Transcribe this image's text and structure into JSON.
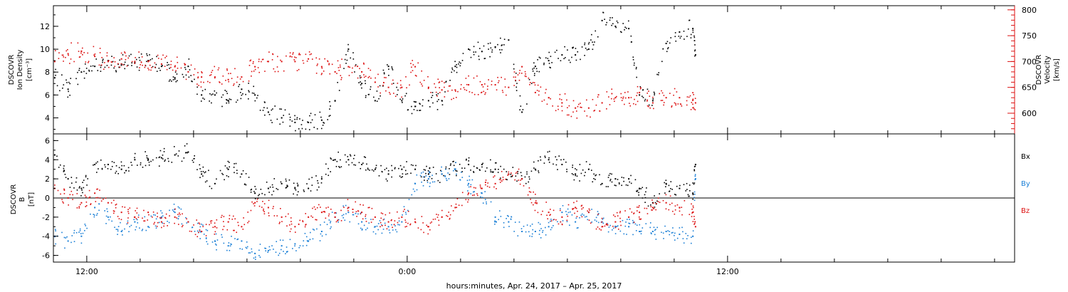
{
  "chart_data": [
    {
      "type": "scatter",
      "panel": "top",
      "ylabel_left": [
        "DSCOVR",
        "Ion Density",
        "[cm⁻³]"
      ],
      "ylabel_right": [
        "DSCOVR",
        "Velocity",
        "[km/s]"
      ],
      "ylim_left": [
        2.6,
        13.8
      ],
      "ylim_right": [
        560,
        808
      ],
      "yticks_left": [
        "4",
        "6",
        "8",
        "10",
        "12"
      ],
      "yticks_right": [
        "600",
        "650",
        "700",
        "750",
        "800"
      ],
      "x_range_hours": [
        -13.25,
        22.75
      ],
      "x_units": "hours from 00:00 Apr. 25, 2017",
      "colors": {
        "density": "#000000",
        "velocity": "#dd1111"
      },
      "series": [
        {
          "axis": "left",
          "color": "density",
          "points": [
            [
              -13.2,
              7.5
            ],
            [
              -12.7,
              6.5
            ],
            [
              -12.2,
              8.0
            ],
            [
              -11.7,
              8.5
            ],
            [
              -11.2,
              9.0
            ],
            [
              -10.7,
              8.7
            ],
            [
              -10.2,
              8.8
            ],
            [
              -9.7,
              9.0
            ],
            [
              -9.2,
              8.5
            ],
            [
              -8.7,
              7.5
            ],
            [
              -8.2,
              8.5
            ],
            [
              -7.7,
              6.0
            ],
            [
              -7.2,
              6.0
            ],
            [
              -6.7,
              5.5
            ],
            [
              -6.2,
              6.5
            ],
            [
              -5.7,
              6.0
            ],
            [
              -5.2,
              4.5
            ],
            [
              -4.7,
              4.0
            ],
            [
              -4.2,
              3.6
            ],
            [
              -3.7,
              3.6
            ],
            [
              -3.2,
              3.8
            ],
            [
              -2.7,
              5.5
            ],
            [
              -2.2,
              10.0
            ],
            [
              -1.7,
              7.0
            ],
            [
              -1.2,
              5.5
            ],
            [
              -0.7,
              8.5
            ],
            [
              -0.2,
              5.5
            ],
            [
              0.3,
              5.0
            ],
            [
              0.8,
              5.5
            ],
            [
              1.3,
              5.5
            ],
            [
              1.8,
              8.5
            ],
            [
              2.3,
              10.0
            ],
            [
              2.8,
              9.8
            ],
            [
              3.3,
              10.2
            ],
            [
              3.8,
              10.8
            ],
            [
              4.3,
              4.5
            ],
            [
              4.8,
              8.5
            ],
            [
              5.3,
              9.0
            ],
            [
              5.8,
              9.5
            ],
            [
              6.3,
              9.5
            ],
            [
              6.8,
              10.0
            ],
            [
              7.3,
              12.5
            ],
            [
              7.8,
              12.0
            ],
            [
              8.3,
              11.8
            ],
            [
              8.7,
              6.0
            ],
            [
              9.2,
              5.5
            ],
            [
              9.7,
              10.5
            ],
            [
              10.2,
              11.5
            ],
            [
              10.7,
              11.8
            ],
            [
              10.8,
              9.5
            ]
          ]
        },
        {
          "axis": "right",
          "color": "velocity",
          "points": [
            [
              -13.2,
              700
            ],
            [
              -12.7,
              715
            ],
            [
              -12.2,
              720
            ],
            [
              -11.7,
              710
            ],
            [
              -11.2,
              700
            ],
            [
              -10.7,
              705
            ],
            [
              -10.2,
              700
            ],
            [
              -9.7,
              700
            ],
            [
              -9.2,
              695
            ],
            [
              -8.7,
              690
            ],
            [
              -8.2,
              680
            ],
            [
              -7.7,
              670
            ],
            [
              -7.2,
              670
            ],
            [
              -6.7,
              665
            ],
            [
              -6.2,
              670
            ],
            [
              -5.7,
              690
            ],
            [
              -5.2,
              700
            ],
            [
              -4.7,
              700
            ],
            [
              -4.2,
              700
            ],
            [
              -3.7,
              705
            ],
            [
              -3.2,
              690
            ],
            [
              -2.7,
              680
            ],
            [
              -2.2,
              690
            ],
            [
              -1.7,
              680
            ],
            [
              -1.2,
              660
            ],
            [
              -0.7,
              650
            ],
            [
              -0.2,
              650
            ],
            [
              0.3,
              690
            ],
            [
              0.8,
              650
            ],
            [
              1.3,
              645
            ],
            [
              1.8,
              645
            ],
            [
              2.3,
              655
            ],
            [
              2.8,
              655
            ],
            [
              3.3,
              655
            ],
            [
              3.8,
              650
            ],
            [
              4.3,
              690
            ],
            [
              4.8,
              640
            ],
            [
              5.3,
              630
            ],
            [
              5.8,
              620
            ],
            [
              6.3,
              610
            ],
            [
              6.8,
              610
            ],
            [
              7.3,
              620
            ],
            [
              7.8,
              630
            ],
            [
              8.3,
              630
            ],
            [
              8.7,
              640
            ],
            [
              9.2,
              620
            ],
            [
              9.7,
              630
            ],
            [
              10.2,
              630
            ],
            [
              10.7,
              625
            ],
            [
              10.8,
              620
            ]
          ]
        }
      ]
    },
    {
      "type": "scatter",
      "panel": "bottom",
      "ylabel_left": [
        "DSCOVR",
        "B",
        "[nT]"
      ],
      "ylim_left": [
        -6.7,
        6.7
      ],
      "yticks_left": [
        "-6",
        "-4",
        "-2",
        "0",
        "2",
        "4",
        "6"
      ],
      "zero_line": true,
      "x_range_hours": [
        -13.25,
        22.75
      ],
      "legend": [
        "Bx",
        "By",
        "Bz"
      ],
      "legend_placement": "right",
      "colors": {
        "bx": "#000000",
        "by": "#1a7fd6",
        "bz": "#dd1111"
      },
      "series": [
        {
          "name": "Bx",
          "color": "bx",
          "points": [
            [
              -13.2,
              4.5
            ],
            [
              -12.7,
              2.0
            ],
            [
              -12.2,
              1.0
            ],
            [
              -11.7,
              3.5
            ],
            [
              -11.2,
              3.5
            ],
            [
              -10.7,
              3.0
            ],
            [
              -10.2,
              4.0
            ],
            [
              -9.7,
              4.0
            ],
            [
              -9.2,
              4.2
            ],
            [
              -8.7,
              4.5
            ],
            [
              -8.2,
              4.8
            ],
            [
              -7.7,
              2.5
            ],
            [
              -7.2,
              1.5
            ],
            [
              -6.7,
              3.0
            ],
            [
              -6.2,
              2.5
            ],
            [
              -5.7,
              0.5
            ],
            [
              -5.2,
              1.0
            ],
            [
              -4.7,
              1.5
            ],
            [
              -4.2,
              1.0
            ],
            [
              -3.7,
              1.0
            ],
            [
              -3.2,
              2.0
            ],
            [
              -2.7,
              4.0
            ],
            [
              -2.2,
              4.0
            ],
            [
              -1.7,
              3.5
            ],
            [
              -1.2,
              3.0
            ],
            [
              -0.7,
              2.5
            ],
            [
              -0.2,
              3.0
            ],
            [
              0.3,
              3.0
            ],
            [
              0.8,
              2.5
            ],
            [
              1.3,
              2.5
            ],
            [
              1.8,
              3.0
            ],
            [
              2.3,
              3.5
            ],
            [
              2.8,
              3.5
            ],
            [
              3.3,
              3.0
            ],
            [
              3.8,
              2.5
            ],
            [
              4.3,
              2.0
            ],
            [
              4.8,
              3.0
            ],
            [
              5.3,
              4.0
            ],
            [
              5.8,
              3.5
            ],
            [
              6.3,
              2.5
            ],
            [
              6.8,
              3.0
            ],
            [
              7.3,
              1.5
            ],
            [
              7.8,
              2.0
            ],
            [
              8.3,
              2.0
            ],
            [
              8.7,
              1.0
            ],
            [
              9.2,
              -0.5
            ],
            [
              9.7,
              1.5
            ],
            [
              10.2,
              1.0
            ],
            [
              10.7,
              0.5
            ],
            [
              10.8,
              3.5
            ]
          ]
        },
        {
          "name": "By",
          "color": "by",
          "points": [
            [
              -13.2,
              -4.0
            ],
            [
              -12.7,
              -4.5
            ],
            [
              -12.2,
              -4.0
            ],
            [
              -11.7,
              -1.0
            ],
            [
              -11.2,
              -2.0
            ],
            [
              -10.7,
              -3.5
            ],
            [
              -10.2,
              -2.5
            ],
            [
              -9.7,
              -3.0
            ],
            [
              -9.2,
              -2.0
            ],
            [
              -8.7,
              -1.5
            ],
            [
              -8.2,
              -2.5
            ],
            [
              -7.7,
              -3.5
            ],
            [
              -7.2,
              -4.5
            ],
            [
              -6.7,
              -5.0
            ],
            [
              -6.2,
              -4.5
            ],
            [
              -5.7,
              -5.8
            ],
            [
              -5.2,
              -5.5
            ],
            [
              -4.7,
              -5.0
            ],
            [
              -4.2,
              -4.8
            ],
            [
              -3.7,
              -4.5
            ],
            [
              -3.2,
              -3.5
            ],
            [
              -2.7,
              -2.0
            ],
            [
              -2.2,
              -1.5
            ],
            [
              -1.7,
              -2.5
            ],
            [
              -1.2,
              -3.0
            ],
            [
              -0.7,
              -3.0
            ],
            [
              -0.2,
              -2.5
            ],
            [
              0.3,
              1.5
            ],
            [
              0.8,
              2.0
            ],
            [
              1.3,
              2.5
            ],
            [
              1.8,
              3.0
            ],
            [
              2.3,
              1.5
            ],
            [
              2.8,
              0.5
            ],
            [
              3.3,
              -2.0
            ],
            [
              3.8,
              -2.5
            ],
            [
              4.3,
              -3.5
            ],
            [
              4.8,
              -3.5
            ],
            [
              5.3,
              -3.0
            ],
            [
              5.8,
              -1.5
            ],
            [
              6.3,
              -2.5
            ],
            [
              6.8,
              -1.5
            ],
            [
              7.3,
              -2.5
            ],
            [
              7.8,
              -3.0
            ],
            [
              8.3,
              -3.0
            ],
            [
              8.7,
              -3.5
            ],
            [
              9.2,
              -3.5
            ],
            [
              9.7,
              -3.5
            ],
            [
              10.2,
              -3.8
            ],
            [
              10.7,
              -4.0
            ],
            [
              10.8,
              2.0
            ]
          ]
        },
        {
          "name": "Bz",
          "color": "bz",
          "points": [
            [
              -13.2,
              1.0
            ],
            [
              -12.7,
              0.0
            ],
            [
              -12.2,
              -0.5
            ],
            [
              -11.7,
              0.5
            ],
            [
              -11.2,
              -0.5
            ],
            [
              -10.7,
              -1.5
            ],
            [
              -10.2,
              -2.0
            ],
            [
              -9.7,
              -1.5
            ],
            [
              -9.2,
              -2.5
            ],
            [
              -8.7,
              -2.0
            ],
            [
              -8.2,
              -2.5
            ],
            [
              -7.7,
              -3.5
            ],
            [
              -7.2,
              -3.0
            ],
            [
              -6.7,
              -2.5
            ],
            [
              -6.2,
              -3.0
            ],
            [
              -5.7,
              -0.5
            ],
            [
              -5.2,
              -1.0
            ],
            [
              -4.7,
              -2.0
            ],
            [
              -4.2,
              -3.0
            ],
            [
              -3.7,
              -2.0
            ],
            [
              -3.2,
              -1.5
            ],
            [
              -2.7,
              -2.0
            ],
            [
              -2.2,
              -1.0
            ],
            [
              -1.7,
              -1.5
            ],
            [
              -1.2,
              -2.0
            ],
            [
              -0.7,
              -2.5
            ],
            [
              -0.2,
              -2.0
            ],
            [
              0.3,
              -2.5
            ],
            [
              0.8,
              -3.0
            ],
            [
              1.3,
              -2.0
            ],
            [
              1.8,
              -1.0
            ],
            [
              2.3,
              0.5
            ],
            [
              2.8,
              1.0
            ],
            [
              3.3,
              1.5
            ],
            [
              3.8,
              2.5
            ],
            [
              4.3,
              2.0
            ],
            [
              4.8,
              -0.5
            ],
            [
              5.3,
              -1.5
            ],
            [
              5.8,
              -2.0
            ],
            [
              6.3,
              -1.0
            ],
            [
              6.8,
              -1.5
            ],
            [
              7.3,
              -3.0
            ],
            [
              7.8,
              -2.5
            ],
            [
              8.3,
              -2.0
            ],
            [
              8.7,
              -1.5
            ],
            [
              9.2,
              -1.0
            ],
            [
              9.7,
              -0.5
            ],
            [
              10.2,
              -1.0
            ],
            [
              10.7,
              -1.5
            ],
            [
              10.8,
              -3.0
            ]
          ]
        }
      ]
    }
  ],
  "x_axis": {
    "tick_labels": [
      {
        "hour": -12,
        "label": "12:00"
      },
      {
        "hour": 0,
        "label": "0:00"
      },
      {
        "hour": 12,
        "label": "12:00"
      }
    ],
    "minor_tick_hours": [
      -10,
      -8,
      -6,
      -4,
      -2,
      2,
      4,
      6,
      8,
      10,
      14,
      16,
      18,
      20,
      22
    ],
    "xlabel": "hours:minutes, Apr. 24, 2017 – Apr. 25, 2017"
  }
}
